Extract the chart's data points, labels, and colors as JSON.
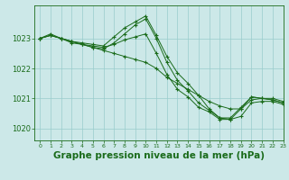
{
  "background_color": "#cce8e8",
  "grid_color": "#99cccc",
  "line_color": "#1a6b1a",
  "xlabel": "Graphe pression niveau de la mer (hPa)",
  "ylim": [
    1019.6,
    1024.1
  ],
  "xlim": [
    -0.5,
    23
  ],
  "yticks": [
    1020,
    1021,
    1022,
    1023
  ],
  "xticks": [
    0,
    1,
    2,
    3,
    4,
    5,
    6,
    7,
    8,
    9,
    10,
    11,
    12,
    13,
    14,
    15,
    16,
    17,
    18,
    19,
    20,
    21,
    22,
    23
  ],
  "series": [
    [
      1023.0,
      1023.1,
      1023.0,
      1022.85,
      1022.8,
      1022.7,
      1022.6,
      1022.5,
      1022.4,
      1022.3,
      1022.2,
      1022.0,
      1021.7,
      1021.5,
      1021.3,
      1021.1,
      1020.9,
      1020.75,
      1020.65,
      1020.65,
      1020.95,
      1021.0,
      1021.0,
      1020.9
    ],
    [
      1023.0,
      1023.15,
      1023.0,
      1022.9,
      1022.85,
      1022.8,
      1022.75,
      1023.05,
      1023.35,
      1023.55,
      1023.75,
      1023.1,
      1022.4,
      1021.85,
      1021.5,
      1021.1,
      1020.65,
      1020.35,
      1020.3,
      1020.4,
      1020.85,
      1020.9,
      1020.9,
      1020.8
    ],
    [
      1023.0,
      1023.1,
      1023.0,
      1022.9,
      1022.8,
      1022.75,
      1022.7,
      1022.8,
      1022.95,
      1023.05,
      1023.15,
      1022.5,
      1021.8,
      1021.3,
      1021.05,
      1020.7,
      1020.55,
      1020.3,
      1020.3,
      1020.65,
      1021.05,
      1021.0,
      1020.95,
      1020.85
    ],
    [
      1023.0,
      1023.1,
      1023.0,
      1022.9,
      1022.8,
      1022.7,
      1022.65,
      1022.85,
      1023.15,
      1023.45,
      1023.65,
      1023.0,
      1022.2,
      1021.6,
      1021.25,
      1020.85,
      1020.6,
      1020.35,
      1020.35,
      1020.7,
      1021.05,
      1021.0,
      1020.95,
      1020.85
    ]
  ]
}
